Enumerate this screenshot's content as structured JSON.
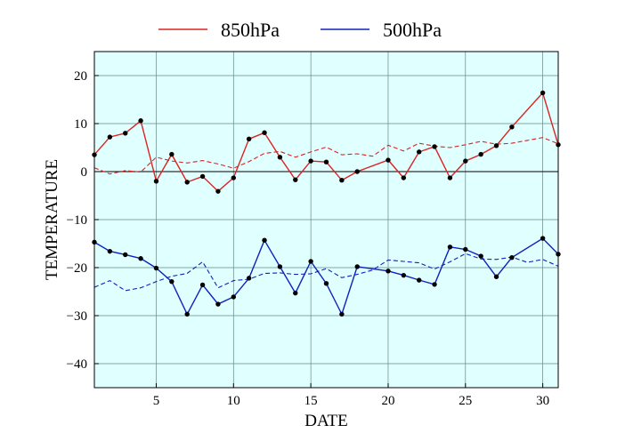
{
  "chart_data": {
    "type": "line",
    "xlabel": "DATE",
    "ylabel": "TEMPERATURE",
    "xlim": [
      1,
      31
    ],
    "ylim": [
      -45,
      25
    ],
    "x_ticks": [
      5,
      10,
      15,
      20,
      25,
      30
    ],
    "y_ticks": [
      20,
      10,
      0,
      -10,
      -20,
      -30,
      -40
    ],
    "y_tick_labels": [
      "20",
      "10",
      "0",
      "−10",
      "−20",
      "−30",
      "−40"
    ],
    "grid": true,
    "zero_line": true,
    "plot_background": "#e0ffff",
    "legend_position": "top-center",
    "x": [
      1,
      2,
      3,
      4,
      5,
      6,
      7,
      8,
      9,
      10,
      11,
      12,
      13,
      14,
      15,
      16,
      17,
      18,
      19,
      20,
      21,
      22,
      23,
      24,
      25,
      26,
      27,
      28,
      29,
      30,
      31
    ],
    "series": [
      {
        "name": "850hPa",
        "color": "#dd2222",
        "style": "solid",
        "markers": true,
        "values": [
          3.5,
          7.2,
          8.0,
          10.6,
          -2.0,
          3.6,
          -2.2,
          -1.0,
          -4.1,
          -1.3,
          6.8,
          8.1,
          3.0,
          -1.7,
          2.2,
          2.0,
          -1.8,
          0.0,
          null,
          2.4,
          -1.3,
          4.1,
          5.2,
          -1.3,
          2.2,
          3.6,
          5.4,
          9.3,
          null,
          16.4,
          5.6
        ]
      },
      {
        "name": "500hPa",
        "color": "#1122bb",
        "style": "solid",
        "markers": true,
        "values": [
          -14.7,
          -16.6,
          -17.3,
          -18.1,
          -20.1,
          -22.9,
          -29.7,
          -23.6,
          -27.6,
          -26.1,
          -22.2,
          -14.3,
          -19.8,
          -25.3,
          -18.7,
          -23.3,
          -29.7,
          -19.8,
          null,
          -20.7,
          -21.6,
          -22.6,
          -23.5,
          -15.7,
          -16.2,
          -17.6,
          -21.9,
          -17.9,
          null,
          -13.9,
          -17.2
        ]
      },
      {
        "color": "#dd2222",
        "style": "dashed",
        "markers": false,
        "values": [
          0.8,
          -0.5,
          0.2,
          -0.1,
          3.0,
          2.2,
          1.8,
          2.3,
          1.6,
          0.7,
          2.1,
          3.8,
          4.2,
          3.0,
          4.1,
          5.1,
          3.5,
          3.7,
          3.2,
          5.5,
          4.3,
          5.9,
          5.3,
          5.0,
          5.6,
          6.3,
          5.7,
          5.9,
          6.5,
          7.1,
          5.8
        ]
      },
      {
        "color": "#1122bb",
        "style": "dashed",
        "markers": false,
        "values": [
          -24.1,
          -22.7,
          -24.8,
          -24.2,
          -22.9,
          -21.8,
          -21.2,
          -18.8,
          -24.2,
          -22.7,
          -22.4,
          -21.2,
          -21.1,
          -21.4,
          -21.3,
          -20.2,
          -22.1,
          -21.4,
          -20.5,
          -18.4,
          -18.7,
          -19.0,
          -20.3,
          -18.8,
          -17.1,
          -18.2,
          -18.3,
          -17.8,
          -18.9,
          -18.3,
          -19.7
        ]
      }
    ]
  }
}
